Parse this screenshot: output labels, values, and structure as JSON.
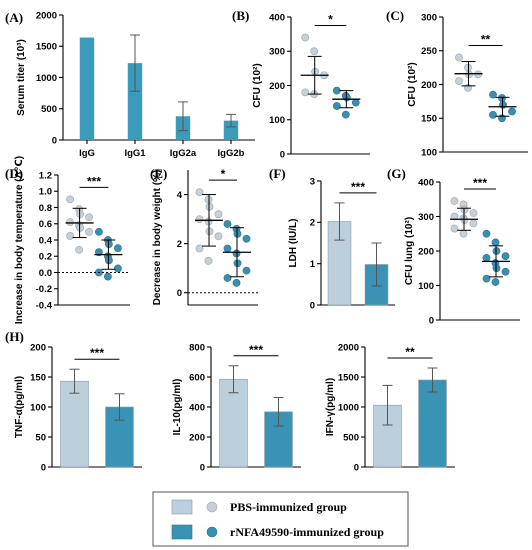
{
  "colors": {
    "pbs": "#bccfdc",
    "rnfa": "#3a93b5",
    "pbs_dot": "#c7d0d9",
    "rnfa_dot": "#3a8fb1",
    "single": "#3b9bbb"
  },
  "legend": {
    "pbs": "PBS-immunized group",
    "rnfa": "rNFA49590-immunized group"
  },
  "chart_data": [
    {
      "panel": "(A)",
      "type": "bar",
      "ylabel": "Serum titer (10³)",
      "categories": [
        "IgG",
        "IgG1",
        "IgG2a",
        "IgG2b"
      ],
      "values": [
        1640,
        1230,
        380,
        310
      ],
      "errors": [
        0,
        450,
        230,
        100
      ],
      "ylim": [
        0,
        2000
      ],
      "yticks": [
        "0",
        "500",
        "1000",
        "1500",
        "2000"
      ]
    },
    {
      "panel": "(B)",
      "type": "scatter",
      "ylabel": "CFU (10²)",
      "significance": "*",
      "ylim": [
        0,
        400
      ],
      "yticks": [
        "0",
        "100",
        "200",
        "300",
        "400"
      ],
      "series": [
        {
          "group": "pbs",
          "values": [
            340,
            300,
            240,
            230,
            180,
            175
          ],
          "mean": 230,
          "sd": 55
        },
        {
          "group": "rnfa",
          "values": [
            185,
            170,
            165,
            150,
            140,
            115
          ],
          "mean": 160,
          "sd": 25
        }
      ]
    },
    {
      "panel": "(C)",
      "type": "scatter",
      "ylabel": "CFU (10²)",
      "significance": "**",
      "ylim": [
        100,
        300
      ],
      "yticks": [
        "100",
        "150",
        "200",
        "250",
        "300"
      ],
      "series": [
        {
          "group": "pbs",
          "values": [
            240,
            225,
            215,
            215,
            205,
            195
          ],
          "mean": 216,
          "sd": 18
        },
        {
          "group": "rnfa",
          "values": [
            185,
            180,
            170,
            160,
            155,
            150
          ],
          "mean": 167,
          "sd": 14
        }
      ]
    },
    {
      "panel": "(D)",
      "type": "scatter",
      "ylabel": "Increase in body temperature (Δ℃)",
      "significance": "***",
      "ylim": [
        -0.4,
        1.2
      ],
      "yticks": [
        "-0.4",
        "-0.2",
        "0.0",
        "0.2",
        "0.4",
        "0.6",
        "0.8",
        "1.0",
        "1.2"
      ],
      "series": [
        {
          "group": "pbs",
          "values": [
            0.9,
            0.78,
            0.72,
            0.68,
            0.62,
            0.58,
            0.55,
            0.5,
            0.45,
            0.28
          ],
          "mean": 0.61,
          "sd": 0.18
        },
        {
          "group": "rnfa",
          "values": [
            0.5,
            0.4,
            0.35,
            0.3,
            0.25,
            0.2,
            0.15,
            0.05,
            0.0,
            -0.05
          ],
          "mean": 0.22,
          "sd": 0.18
        }
      ]
    },
    {
      "panel": "(E)",
      "type": "scatter",
      "ylabel": "Decrease in body weight (%)",
      "significance": "*",
      "ylim": [
        -0.5,
        5
      ],
      "yticks": [
        "0",
        "2",
        "4"
      ],
      "series": [
        {
          "group": "pbs",
          "values": [
            4.1,
            3.8,
            3.5,
            3.2,
            3.0,
            2.9,
            2.5,
            2.3,
            1.8,
            1.3
          ],
          "mean": 2.95,
          "sd": 1.05
        },
        {
          "group": "rnfa",
          "values": [
            2.8,
            2.6,
            2.4,
            2.2,
            1.8,
            1.6,
            1.2,
            0.9,
            0.6,
            0.4
          ],
          "mean": 1.65,
          "sd": 1.0
        }
      ]
    },
    {
      "panel": "(F)",
      "type": "bar",
      "ylabel": "LDH (IU/L)",
      "significance": "***",
      "categories": [
        "PBS",
        "rNFA49590"
      ],
      "values": [
        2.02,
        0.98
      ],
      "errors": [
        0.45,
        0.52
      ],
      "ylim": [
        0,
        3
      ],
      "yticks": [
        "0",
        "1",
        "2",
        "3"
      ]
    },
    {
      "panel": "(G)",
      "type": "scatter",
      "ylabel": "CFU lung (10²)",
      "significance": "***",
      "ylim": [
        0,
        400
      ],
      "yticks": [
        "0",
        "100",
        "200",
        "300",
        "400"
      ],
      "series": [
        {
          "group": "pbs",
          "values": [
            345,
            335,
            320,
            310,
            300,
            295,
            290,
            280,
            265,
            250
          ],
          "mean": 292,
          "sd": 32
        },
        {
          "group": "rnfa",
          "values": [
            250,
            225,
            200,
            185,
            180,
            165,
            150,
            140,
            120,
            110
          ],
          "mean": 170,
          "sd": 45
        }
      ]
    },
    {
      "panel": "(H)",
      "type": "bar",
      "ylabel": "TNF-α(pg/ml)",
      "significance": "***",
      "categories": [
        "PBS",
        "rNFA49590"
      ],
      "values": [
        143,
        100
      ],
      "errors": [
        20,
        22
      ],
      "ylim": [
        0,
        200
      ],
      "yticks": [
        "0",
        "50",
        "100",
        "150",
        "200"
      ]
    },
    {
      "panel": "",
      "type": "bar",
      "ylabel": "IL-10(pg/ml)",
      "significance": "***",
      "categories": [
        "PBS",
        "rNFA49590"
      ],
      "values": [
        585,
        368
      ],
      "errors": [
        90,
        95
      ],
      "ylim": [
        0,
        800
      ],
      "yticks": [
        "0",
        "200",
        "400",
        "600",
        "800"
      ]
    },
    {
      "panel": "",
      "type": "bar",
      "ylabel": "IFN-γ(pg/ml)",
      "significance": "**",
      "categories": [
        "PBS",
        "rNFA49590"
      ],
      "values": [
        1030,
        1450
      ],
      "errors": [
        330,
        200
      ],
      "ylim": [
        0,
        2000
      ],
      "yticks": [
        "0",
        "500",
        "1000",
        "1500",
        "2000"
      ]
    }
  ]
}
